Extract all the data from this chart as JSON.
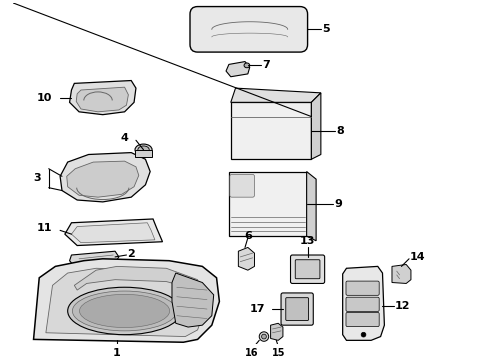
{
  "bg_color": "#ffffff",
  "lc": "#000000",
  "gray": "#666666",
  "lgray": "#aaaaaa",
  "figsize": [
    4.9,
    3.6
  ],
  "dpi": 100
}
